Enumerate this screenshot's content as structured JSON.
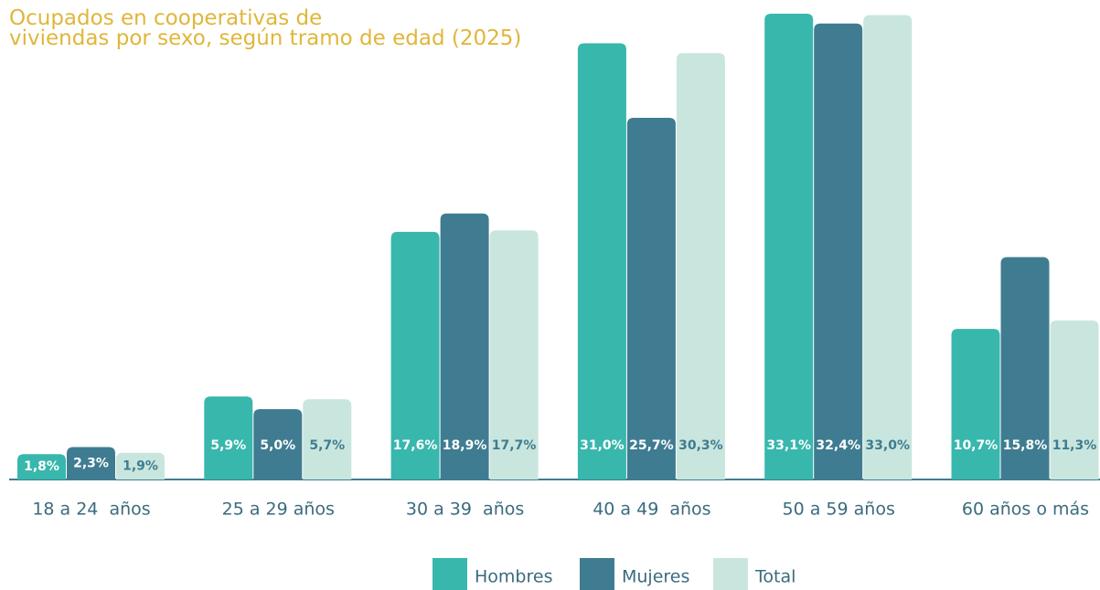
{
  "chart_data": {
    "type": "bar",
    "title": "Ocupados en cooperativas de\nviviendas por sexo, según tramo de edad (2025)",
    "categories": [
      "18 a 24  años",
      "25 a 29 años",
      "30 a 39  años",
      "40 a 49  años",
      "50 a 59 años",
      "60 años o más"
    ],
    "series": [
      {
        "name": "Hombres",
        "color": "#38b7ad",
        "values": [
          1.8,
          5.9,
          17.6,
          31.0,
          33.1,
          10.7
        ],
        "value_labels": [
          "1,8%",
          "5,9%",
          "17,6%",
          "31,0%",
          "33,1%",
          "10,7%"
        ]
      },
      {
        "name": "Mujeres",
        "color": "#3f7c91",
        "values": [
          2.3,
          5.0,
          18.9,
          25.7,
          32.4,
          15.8
        ],
        "value_labels": [
          "2,3%",
          "5,0%",
          "18,9%",
          "25,7%",
          "32,4%",
          "15,8%"
        ]
      },
      {
        "name": "Total",
        "color": "#c9e6de",
        "values": [
          1.9,
          5.7,
          17.7,
          30.3,
          33.0,
          11.3
        ],
        "value_labels": [
          "1,9%",
          "5,7%",
          "17,7%",
          "30,3%",
          "33,0%",
          "11,3%"
        ]
      }
    ]
  }
}
